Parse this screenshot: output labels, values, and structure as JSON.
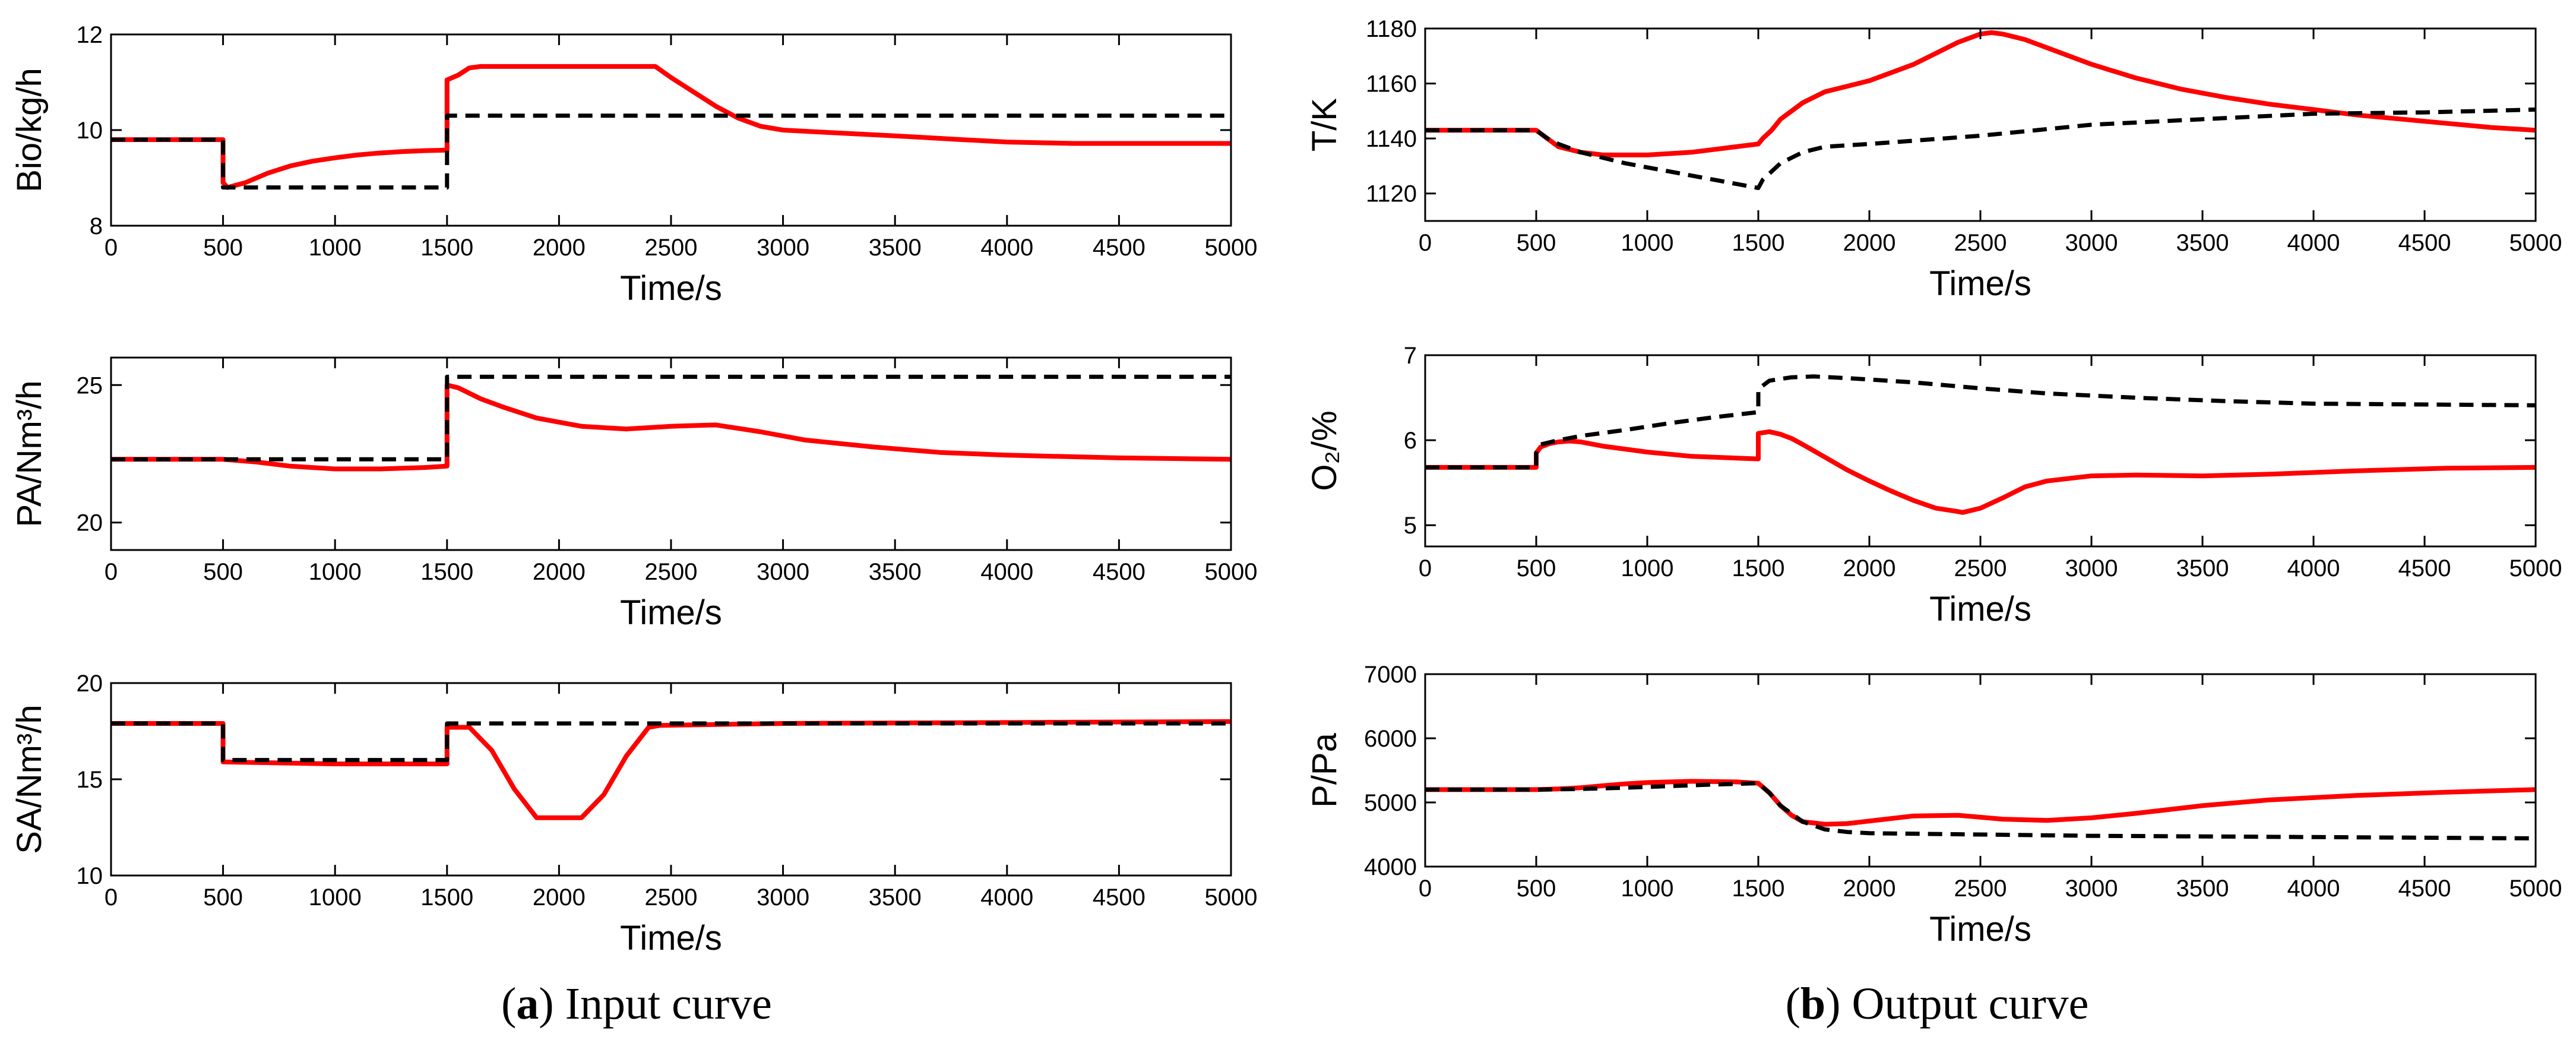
{
  "colors": {
    "solid": "#ff0000",
    "dashed": "#000000"
  },
  "captions": {
    "a": {
      "letter": "a",
      "text": " Input curve"
    },
    "b": {
      "letter": "b",
      "text": " Output curve"
    }
  },
  "chart_data": [
    {
      "id": "bio",
      "type": "line",
      "column": "a",
      "xlabel": "Time/s",
      "ylabel": "Bio/kg/h",
      "xlim": [
        0,
        5000
      ],
      "ylim": [
        8,
        12
      ],
      "xticks": [
        0,
        500,
        1000,
        1500,
        2000,
        2500,
        3000,
        3500,
        4000,
        4500,
        5000
      ],
      "yticks": [
        8,
        10,
        12
      ],
      "series": [
        {
          "name": "dashed",
          "style": "dashed",
          "x": [
            0,
            500,
            500,
            1500,
            1500,
            5000
          ],
          "y": [
            9.8,
            9.8,
            8.8,
            8.8,
            10.3,
            10.3
          ]
        },
        {
          "name": "solid",
          "style": "solid",
          "x": [
            0,
            500,
            500,
            520,
            600,
            700,
            800,
            900,
            1000,
            1100,
            1200,
            1300,
            1400,
            1500,
            1500,
            1550,
            1600,
            1650,
            2000,
            2430,
            2500,
            2600,
            2700,
            2800,
            2900,
            3000,
            3200,
            3500,
            3800,
            4000,
            4300,
            4600,
            5000
          ],
          "y": [
            9.8,
            9.8,
            8.9,
            8.8,
            8.9,
            9.1,
            9.25,
            9.35,
            9.42,
            9.48,
            9.52,
            9.55,
            9.57,
            9.58,
            11.05,
            11.15,
            11.3,
            11.33,
            11.33,
            11.33,
            11.1,
            10.8,
            10.5,
            10.25,
            10.08,
            10.0,
            9.95,
            9.88,
            9.8,
            9.75,
            9.72,
            9.72,
            9.72
          ]
        }
      ]
    },
    {
      "id": "pa",
      "type": "line",
      "column": "a",
      "xlabel": "Time/s",
      "ylabel": "PA/Nm³/h",
      "xlim": [
        0,
        5000
      ],
      "ylim": [
        19,
        26
      ],
      "xticks": [
        0,
        500,
        1000,
        1500,
        2000,
        2500,
        3000,
        3500,
        4000,
        4500,
        5000
      ],
      "yticks": [
        20,
        25
      ],
      "series": [
        {
          "name": "dashed",
          "style": "dashed",
          "x": [
            0,
            1500,
            1500,
            5000
          ],
          "y": [
            22.3,
            22.3,
            25.3,
            25.3
          ]
        },
        {
          "name": "solid",
          "style": "solid",
          "x": [
            0,
            500,
            650,
            800,
            1000,
            1200,
            1400,
            1500,
            1500,
            1550,
            1650,
            1750,
            1900,
            2100,
            2300,
            2500,
            2700,
            2900,
            3100,
            3400,
            3700,
            4000,
            4500,
            5000
          ],
          "y": [
            22.3,
            22.3,
            22.2,
            22.05,
            21.95,
            21.95,
            22.0,
            22.05,
            25.0,
            24.9,
            24.5,
            24.2,
            23.8,
            23.5,
            23.4,
            23.5,
            23.55,
            23.3,
            23.0,
            22.75,
            22.55,
            22.45,
            22.35,
            22.3
          ]
        }
      ]
    },
    {
      "id": "sa",
      "type": "line",
      "column": "a",
      "xlabel": "Time/s",
      "ylabel": "SA/Nm³/h",
      "xlim": [
        0,
        5000
      ],
      "ylim": [
        10,
        20
      ],
      "xticks": [
        0,
        500,
        1000,
        1500,
        2000,
        2500,
        3000,
        3500,
        4000,
        4500,
        5000
      ],
      "yticks": [
        10,
        15,
        20
      ],
      "series": [
        {
          "name": "dashed",
          "style": "dashed",
          "x": [
            0,
            500,
            500,
            1500,
            1500,
            5000
          ],
          "y": [
            17.9,
            17.9,
            16.0,
            16.0,
            17.9,
            17.9
          ]
        },
        {
          "name": "solid",
          "style": "solid",
          "x": [
            0,
            500,
            500,
            1000,
            1500,
            1500,
            1600,
            1700,
            1800,
            1900,
            2100,
            2200,
            2300,
            2400,
            2450,
            3000,
            5000
          ],
          "y": [
            17.9,
            17.9,
            15.9,
            15.8,
            15.8,
            17.7,
            17.7,
            16.5,
            14.5,
            13.0,
            13.0,
            14.2,
            16.2,
            17.7,
            17.8,
            17.9,
            18.0
          ]
        }
      ]
    },
    {
      "id": "temp",
      "type": "line",
      "column": "b",
      "xlabel": "Time/s",
      "ylabel": "T/K",
      "xlim": [
        0,
        5000
      ],
      "ylim": [
        1110,
        1180
      ],
      "xticks": [
        0,
        500,
        1000,
        1500,
        2000,
        2500,
        3000,
        3500,
        4000,
        4500,
        5000
      ],
      "yticks": [
        1120,
        1140,
        1160,
        1180
      ],
      "series": [
        {
          "name": "dashed",
          "style": "dashed",
          "x": [
            0,
            500,
            550,
            600,
            700,
            900,
            1100,
            1300,
            1500,
            1520,
            1600,
            1700,
            1800,
            2000,
            2500,
            3000,
            3500,
            4000,
            4500,
            5000
          ],
          "y": [
            1143,
            1143,
            1140,
            1138,
            1135,
            1131,
            1128,
            1125,
            1122,
            1125,
            1131,
            1135,
            1137,
            1138,
            1141,
            1145,
            1147,
            1149,
            1149.5,
            1150.5
          ]
        },
        {
          "name": "solid",
          "style": "solid",
          "x": [
            0,
            500,
            550,
            600,
            700,
            800,
            900,
            1000,
            1100,
            1200,
            1300,
            1400,
            1500,
            1520,
            1560,
            1600,
            1650,
            1700,
            1800,
            1900,
            2000,
            2100,
            2200,
            2300,
            2400,
            2500,
            2550,
            2600,
            2700,
            2800,
            3000,
            3200,
            3400,
            3600,
            3800,
            4000,
            4200,
            4400,
            4600,
            4800,
            5000
          ],
          "y": [
            1143,
            1143,
            1140,
            1137,
            1135,
            1134,
            1134,
            1134,
            1134.5,
            1135,
            1136,
            1137,
            1138,
            1140,
            1143,
            1147,
            1150,
            1153,
            1157,
            1159,
            1161,
            1164,
            1167,
            1171,
            1175,
            1178,
            1178.5,
            1178,
            1176,
            1173,
            1167,
            1162,
            1158,
            1155,
            1152.5,
            1150.5,
            1148.5,
            1147,
            1145.5,
            1144,
            1143
          ]
        }
      ]
    },
    {
      "id": "o2",
      "type": "line",
      "column": "b",
      "xlabel": "Time/s",
      "ylabel": "O₂/%",
      "xlim": [
        0,
        5000
      ],
      "ylim": [
        4.75,
        7
      ],
      "xticks": [
        0,
        500,
        1000,
        1500,
        2000,
        2500,
        3000,
        3500,
        4000,
        4500,
        5000
      ],
      "yticks": [
        5,
        6,
        7
      ],
      "series": [
        {
          "name": "dashed",
          "style": "dashed",
          "x": [
            0,
            500,
            500,
            520,
            600,
            700,
            900,
            1100,
            1300,
            1500,
            1500,
            1550,
            1650,
            1750,
            1900,
            2200,
            2500,
            2800,
            3200,
            3600,
            4000,
            4500,
            5000
          ],
          "y": [
            5.68,
            5.68,
            5.85,
            5.95,
            6.0,
            6.05,
            6.12,
            6.2,
            6.27,
            6.33,
            6.6,
            6.7,
            6.74,
            6.75,
            6.73,
            6.68,
            6.61,
            6.55,
            6.5,
            6.46,
            6.43,
            6.42,
            6.41
          ]
        },
        {
          "name": "solid",
          "style": "solid",
          "x": [
            0,
            500,
            500,
            520,
            560,
            600,
            650,
            700,
            800,
            1000,
            1200,
            1400,
            1500,
            1500,
            1550,
            1600,
            1650,
            1700,
            1800,
            1900,
            2000,
            2100,
            2200,
            2300,
            2400,
            2420,
            2500,
            2600,
            2700,
            2800,
            3000,
            3200,
            3500,
            3800,
            4200,
            4600,
            5000
          ],
          "y": [
            5.68,
            5.68,
            5.85,
            5.92,
            5.96,
            5.98,
            5.99,
            5.98,
            5.93,
            5.86,
            5.81,
            5.79,
            5.78,
            6.08,
            6.1,
            6.07,
            6.02,
            5.95,
            5.8,
            5.65,
            5.52,
            5.4,
            5.29,
            5.2,
            5.16,
            5.15,
            5.2,
            5.32,
            5.45,
            5.52,
            5.58,
            5.59,
            5.58,
            5.6,
            5.64,
            5.67,
            5.68
          ]
        }
      ]
    },
    {
      "id": "pressure",
      "type": "line",
      "column": "b",
      "xlabel": "Time/s",
      "ylabel": "P/Pa",
      "xlim": [
        0,
        5000
      ],
      "ylim": [
        4000,
        7000
      ],
      "xticks": [
        0,
        500,
        1000,
        1500,
        2000,
        2500,
        3000,
        3500,
        4000,
        4500,
        5000
      ],
      "yticks": [
        4000,
        5000,
        6000,
        7000
      ],
      "series": [
        {
          "name": "dashed",
          "style": "dashed",
          "x": [
            0,
            500,
            700,
            900,
            1100,
            1300,
            1500,
            1550,
            1600,
            1700,
            1800,
            1900,
            2000,
            2500,
            3000,
            3500,
            4000,
            4500,
            5000
          ],
          "y": [
            5200,
            5200,
            5210,
            5230,
            5255,
            5280,
            5300,
            5150,
            4950,
            4700,
            4580,
            4540,
            4520,
            4500,
            4480,
            4470,
            4460,
            4450,
            4440
          ]
        },
        {
          "name": "solid",
          "style": "solid",
          "x": [
            0,
            500,
            600,
            700,
            800,
            900,
            1000,
            1200,
            1400,
            1500,
            1550,
            1600,
            1650,
            1700,
            1800,
            1900,
            2000,
            2200,
            2400,
            2600,
            2800,
            3000,
            3200,
            3500,
            3800,
            4200,
            4600,
            5000
          ],
          "y": [
            5200,
            5200,
            5210,
            5230,
            5260,
            5290,
            5310,
            5330,
            5320,
            5300,
            5150,
            4950,
            4800,
            4700,
            4660,
            4670,
            4710,
            4790,
            4800,
            4740,
            4720,
            4760,
            4830,
            4950,
            5040,
            5110,
            5160,
            5200
          ]
        }
      ]
    }
  ]
}
